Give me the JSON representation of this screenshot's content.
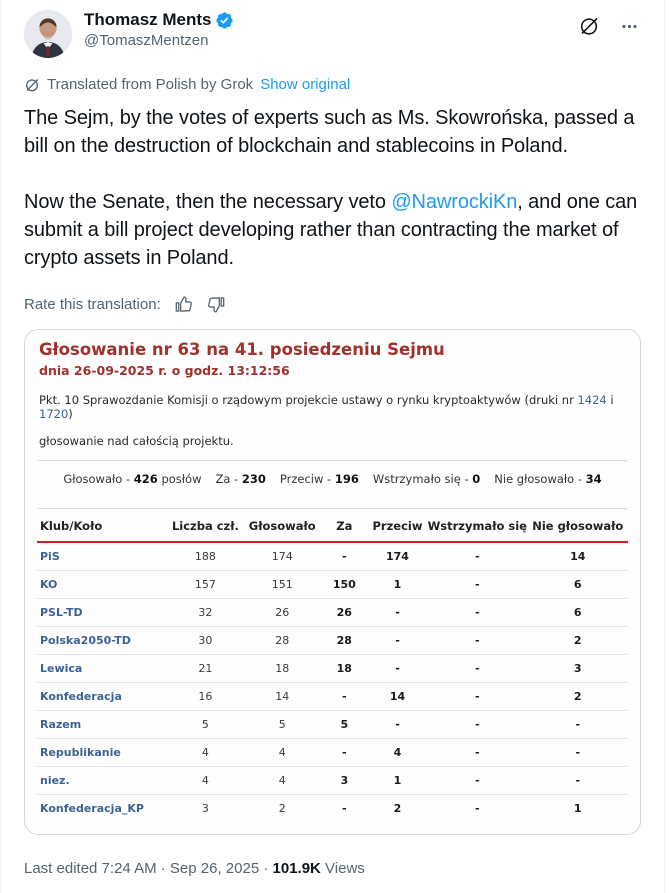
{
  "colors": {
    "accent_blue": "#1d9bf0",
    "card_red": "#a0312c",
    "rule_red": "#cc2222",
    "club_blue": "#3c6295",
    "text_primary": "#0f1419",
    "text_secondary": "#536471"
  },
  "header": {
    "name": "Thomasz Ments",
    "handle": "@TomaszMentzen",
    "icons": [
      "verified-badge",
      "grok-logo",
      "more-dots"
    ]
  },
  "translation": {
    "icon": "grok-logo",
    "label": "Translated from Polish by Grok",
    "action": "Show original"
  },
  "tweet": {
    "p1": "The Sejm, by the votes of experts such as Ms. Skowrońska, passed a bill on the destruction of blockchain and stablecoins in Poland.",
    "p2_before": "Now the Senate, then the necessary veto ",
    "p2_mention": "@NawrockiKn",
    "p2_after": ", and one can submit a bill project developing rather than contracting the market of crypto assets in Poland.",
    "rate_label": "Rate this translation:",
    "rate_icons": [
      "thumbs-up",
      "thumbs-down"
    ]
  },
  "vote_card": {
    "title": "Głosowanie nr 63 na 41. posiedzeniu Sejmu",
    "date_line": "dnia 26-09-2025 r. o godz. 13:12:56",
    "item": {
      "before": "Pkt. 10 Sprawozdanie Komisji o rządowym projekcie ustawy o rynku kryptoaktywów (druki nr ",
      "link1": "1424",
      "mid": " i ",
      "link2": "1720",
      "after": ")"
    },
    "subject": "głosowanie nad całością projektu.",
    "summary": [
      {
        "pre": "Głosowało - ",
        "value": "426",
        "post": " posłów"
      },
      {
        "pre": "Za - ",
        "value": "230",
        "post": ""
      },
      {
        "pre": "Przeciw - ",
        "value": "196",
        "post": ""
      },
      {
        "pre": "Wstrzymało się - ",
        "value": "0",
        "post": ""
      },
      {
        "pre": "Nie głosowało - ",
        "value": "34",
        "post": ""
      }
    ],
    "table": {
      "headers": [
        "Klub/Koło",
        "Liczba czł.",
        "Głosowało",
        "Za",
        "Przeciw",
        "Wstrzymało się",
        "Nie głosowało"
      ],
      "col_widths": [
        "22%",
        "13%",
        "13%",
        "8%",
        "10%",
        "17%",
        "17%"
      ],
      "rows": [
        [
          "PiS",
          "188",
          "174",
          "-",
          "174",
          "-",
          "14"
        ],
        [
          "KO",
          "157",
          "151",
          "150",
          "1",
          "-",
          "6"
        ],
        [
          "PSL-TD",
          "32",
          "26",
          "26",
          "-",
          "-",
          "6"
        ],
        [
          "Polska2050-TD",
          "30",
          "28",
          "28",
          "-",
          "-",
          "2"
        ],
        [
          "Lewica",
          "21",
          "18",
          "18",
          "-",
          "-",
          "3"
        ],
        [
          "Konfederacja",
          "16",
          "14",
          "-",
          "14",
          "-",
          "2"
        ],
        [
          "Razem",
          "5",
          "5",
          "5",
          "-",
          "-",
          "-"
        ],
        [
          "Republikanie",
          "4",
          "4",
          "-",
          "4",
          "-",
          "-"
        ],
        [
          "niez.",
          "4",
          "4",
          "3",
          "1",
          "-",
          "-"
        ],
        [
          "Konfederacja_KP",
          "3",
          "2",
          "-",
          "2",
          "-",
          "1"
        ]
      ]
    }
  },
  "footer": {
    "edited": "Last edited 7:24 AM · Sep 26, 2025 · ",
    "views_count": "101.9K",
    "views_label": " Views"
  }
}
